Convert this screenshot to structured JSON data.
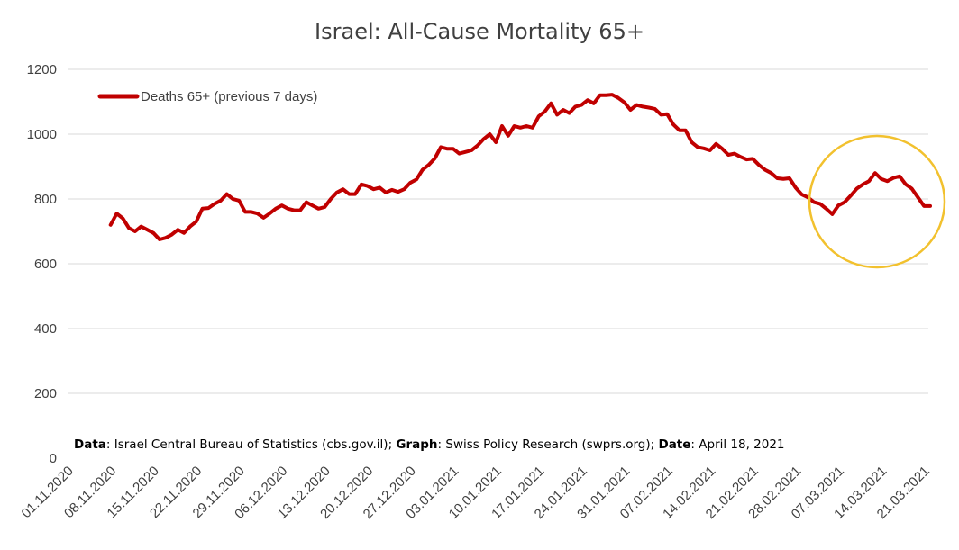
{
  "chart_data": {
    "type": "line",
    "title": "Israel: All-Cause Mortality 65+",
    "xlabel": "",
    "ylabel": "",
    "ylim": [
      0,
      1200
    ],
    "yticks": [
      "0",
      "200",
      "400",
      "600",
      "800",
      "1000",
      "1200"
    ],
    "x_tick_labels": [
      "01.11.2020",
      "08.11.2020",
      "15.11.2020",
      "22.11.2020",
      "29.11.2020",
      "06.12.2020",
      "13.12.2020",
      "20.12.2020",
      "27.12.2020",
      "03.01.2021",
      "10.01.2021",
      "17.01.2021",
      "24.01.2021",
      "31.01.2021",
      "07.02.2021",
      "14.02.2021",
      "21.02.2021",
      "28.02.2021",
      "07.03.2021",
      "14.03.2021",
      "21.03.2021"
    ],
    "grid": true,
    "legend_position": "top-left",
    "series": [
      {
        "name": "Deaths 65+ (previous 7 days)",
        "color": "#c00000",
        "start_date": "2020-11-07",
        "values": [
          720,
          755,
          740,
          710,
          700,
          715,
          705,
          695,
          675,
          680,
          690,
          705,
          695,
          715,
          730,
          770,
          772,
          785,
          795,
          815,
          800,
          795,
          760,
          760,
          755,
          742,
          755,
          770,
          780,
          770,
          765,
          765,
          790,
          780,
          770,
          775,
          800,
          820,
          830,
          815,
          815,
          845,
          840,
          830,
          835,
          820,
          828,
          822,
          830,
          850,
          860,
          890,
          905,
          925,
          960,
          955,
          955,
          940,
          945,
          950,
          965,
          985,
          1000,
          975,
          1025,
          995,
          1025,
          1020,
          1025,
          1020,
          1055,
          1070,
          1095,
          1060,
          1075,
          1065,
          1085,
          1090,
          1105,
          1095,
          1120,
          1120,
          1122,
          1112,
          1098,
          1075,
          1090,
          1085,
          1082,
          1078,
          1060,
          1062,
          1030,
          1012,
          1012,
          975,
          960,
          956,
          950,
          970,
          955,
          936,
          940,
          930,
          922,
          924,
          905,
          890,
          880,
          864,
          862,
          864,
          835,
          814,
          805,
          790,
          785,
          770,
          753,
          780,
          790,
          810,
          832,
          845,
          855,
          880,
          862,
          855,
          865,
          870,
          845,
          832,
          805,
          778,
          778
        ]
      }
    ]
  },
  "source_note": {
    "data_label": "Data",
    "data_text": ": Israel Central Bureau of Statistics (cbs.gov.il); ",
    "graph_label": "Graph",
    "graph_text": ": Swiss Policy Research (swprs.org); ",
    "date_label": "Date",
    "date_text": ": April 18, 2021"
  },
  "annotation": {
    "shape": "circle-highlight",
    "color": "#f2c12e"
  }
}
